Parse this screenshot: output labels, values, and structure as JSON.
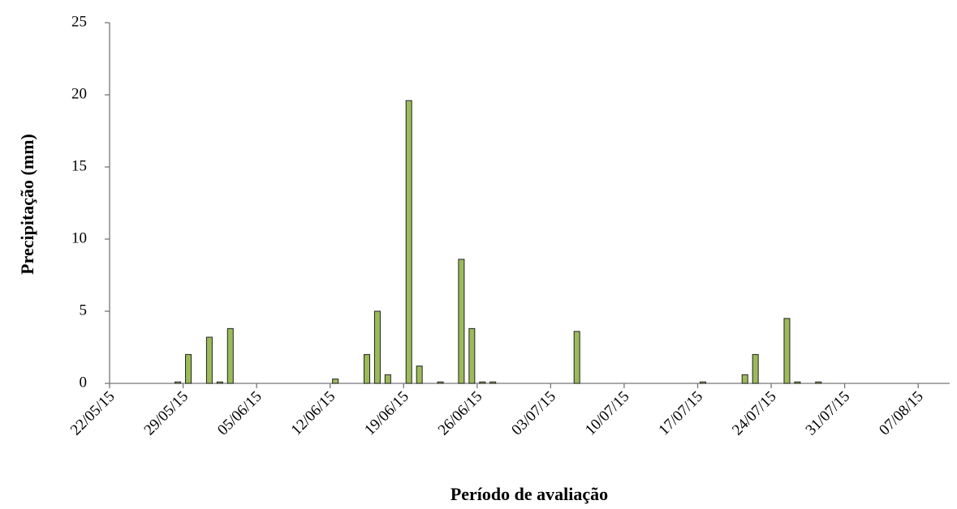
{
  "chart_data": {
    "type": "bar",
    "x_label": "Período de avaliação",
    "y_label": "Precipitação (mm)",
    "x": [
      "28/05/15",
      "29/05/15",
      "31/05/15",
      "01/06/15",
      "02/06/15",
      "12/06/15",
      "15/06/15",
      "16/06/15",
      "17/06/15",
      "19/06/15",
      "20/06/15",
      "22/06/15",
      "24/06/15",
      "25/06/15",
      "26/06/15",
      "27/06/15",
      "05/07/15",
      "17/07/15",
      "21/07/15",
      "22/07/15",
      "25/07/15",
      "26/07/15",
      "28/07/15"
    ],
    "values": [
      0.1,
      2.0,
      3.2,
      0.1,
      3.8,
      0.3,
      2.0,
      5.0,
      0.6,
      19.6,
      1.2,
      0.1,
      8.6,
      3.8,
      0.1,
      0.1,
      3.6,
      0.1,
      0.6,
      2.0,
      4.5,
      0.1,
      0.1
    ],
    "color": "#9bbb59",
    "xlim": [
      "22/05/15",
      "10/08/15"
    ],
    "xticks": [
      "22/05/15",
      "29/05/15",
      "05/06/15",
      "12/06/15",
      "19/06/15",
      "26/06/15",
      "03/07/15",
      "10/07/15",
      "17/07/15",
      "24/07/15",
      "31/07/15",
      "07/08/15"
    ],
    "ylim": [
      0,
      25
    ],
    "yticks": [
      0,
      5,
      10,
      15,
      20,
      25
    ],
    "grid": false
  }
}
